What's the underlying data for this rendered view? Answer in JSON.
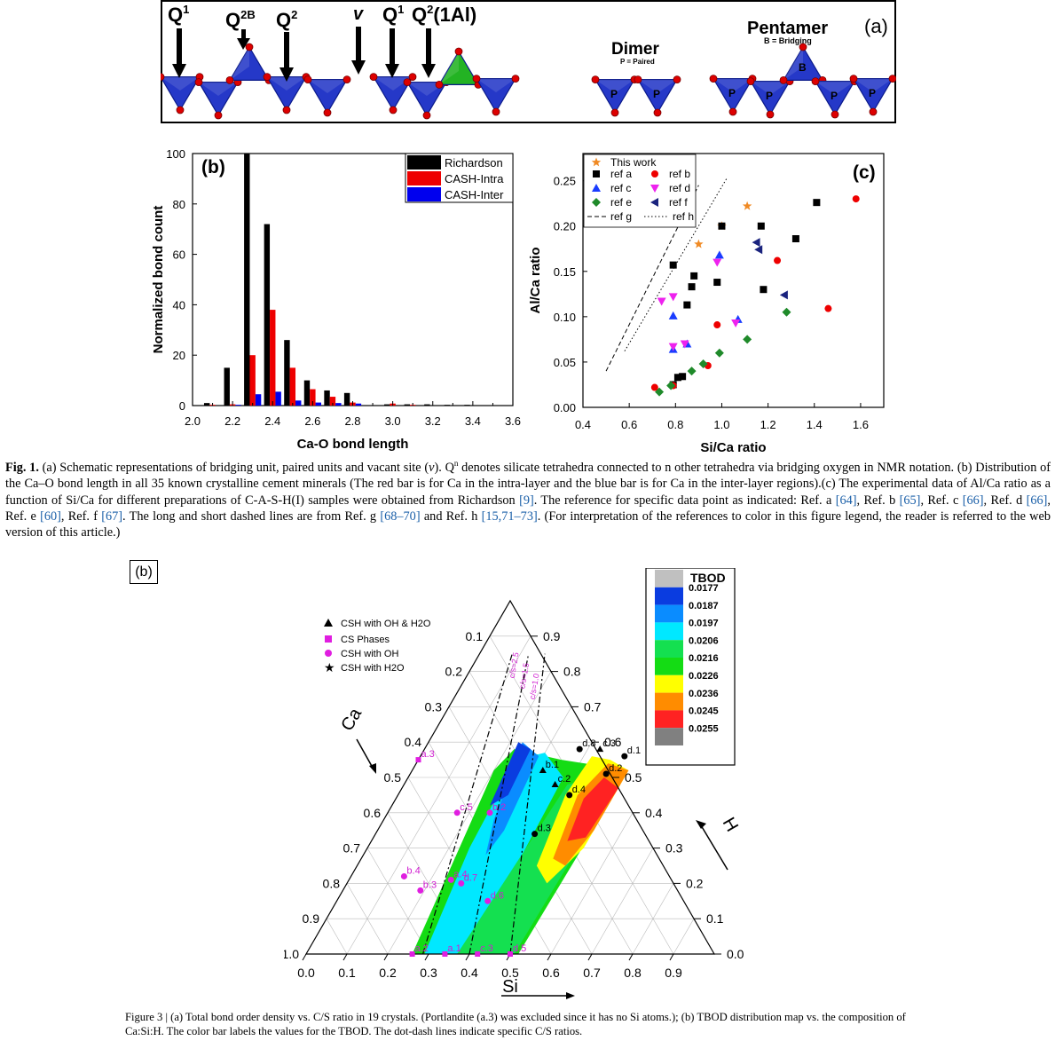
{
  "fig1a": {
    "labels": {
      "q1": "Q",
      "q1sup": "1",
      "q2b": "Q",
      "q2bsup": "2B",
      "q2": "Q",
      "q2sup": "2",
      "v": "v",
      "q1b": "Q",
      "q1bsup": "1",
      "q21al": "Q",
      "q21alsup": "2",
      "q21alsuffix": "(1Al)",
      "dimer": "Dimer",
      "dimer_sub": "P = Paired",
      "pentamer": "Pentamer",
      "pentamer_sub": "B = Bridging",
      "panel": "(a)",
      "p": "P",
      "b": "B"
    }
  },
  "chart_data": [
    {
      "type": "bar",
      "panel": "(b)",
      "xlabel": "Ca-O bond length",
      "ylabel": "Normalized bond count",
      "xlim": [
        2.0,
        3.6
      ],
      "ylim": [
        0,
        100
      ],
      "xticks": [
        "2.0",
        "2.2",
        "2.4",
        "2.6",
        "2.8",
        "3.0",
        "3.2",
        "3.4",
        "3.6"
      ],
      "yticks": [
        "0",
        "20",
        "40",
        "60",
        "80",
        "100"
      ],
      "legend_position": "top-right",
      "series": [
        {
          "name": "Richardson",
          "color": "#000000",
          "x": [
            2.1,
            2.2,
            2.3,
            2.4,
            2.5,
            2.6,
            2.7,
            2.8,
            3.0,
            3.1,
            3.2,
            3.3,
            3.4
          ],
          "values": [
            1,
            15,
            100,
            72,
            26,
            10,
            6,
            5,
            0.5,
            0.5,
            0.5,
            0.3,
            0.3
          ]
        },
        {
          "name": "CASH-Intra",
          "color": "#ee0000",
          "x": [
            2.1,
            2.2,
            2.3,
            2.4,
            2.5,
            2.6,
            2.7,
            2.8,
            3.0,
            3.1
          ],
          "values": [
            0.3,
            0.5,
            20,
            38,
            15,
            6.5,
            3.5,
            1.2,
            0.8,
            0.3
          ]
        },
        {
          "name": "CASH-Inter",
          "color": "#0000ee",
          "x": [
            2.2,
            2.3,
            2.4,
            2.5,
            2.6,
            2.7,
            2.8
          ],
          "values": [
            0.3,
            4.5,
            5.5,
            2,
            1.2,
            1,
            0.8
          ]
        }
      ]
    },
    {
      "type": "scatter",
      "panel": "(c)",
      "xlabel": "Si/Ca ratio",
      "ylabel": "Al/Ca ratio",
      "xlim": [
        0.4,
        1.7
      ],
      "ylim": [
        0,
        0.28
      ],
      "xticks": [
        "0.4",
        "0.6",
        "0.8",
        "1.0",
        "1.2",
        "1.4",
        "1.6"
      ],
      "yticks": [
        "0.00",
        "0.05",
        "0.10",
        "0.15",
        "0.20",
        "0.25"
      ],
      "legend_position": "top-left",
      "series": [
        {
          "name": "This work",
          "marker": "star",
          "color": "#f08a24",
          "points": [
            [
              0.9,
              0.18
            ],
            [
              1.0,
              0.2
            ],
            [
              1.11,
              0.222
            ]
          ]
        },
        {
          "name": "ref a",
          "marker": "square",
          "color": "#000000",
          "points": [
            [
              0.79,
              0.157
            ],
            [
              0.87,
              0.133
            ],
            [
              0.88,
              0.145
            ],
            [
              0.85,
              0.113
            ],
            [
              0.98,
              0.138
            ],
            [
              1.0,
              0.2
            ],
            [
              1.17,
              0.2
            ],
            [
              1.18,
              0.13
            ],
            [
              1.32,
              0.186
            ],
            [
              1.41,
              0.226
            ],
            [
              0.81,
              0.033
            ],
            [
              0.83,
              0.034
            ],
            [
              0.79,
              0.025
            ]
          ]
        },
        {
          "name": "ref b",
          "marker": "circle",
          "color": "#ee0000",
          "points": [
            [
              0.71,
              0.022
            ],
            [
              0.79,
              0.024
            ],
            [
              0.98,
              0.091
            ],
            [
              0.94,
              0.046
            ],
            [
              1.24,
              0.162
            ],
            [
              1.46,
              0.109
            ],
            [
              1.58,
              0.23
            ]
          ]
        },
        {
          "name": "ref c",
          "marker": "triangle-up",
          "color": "#1a3cff",
          "points": [
            [
              0.79,
              0.101
            ],
            [
              0.99,
              0.168
            ],
            [
              1.07,
              0.097
            ],
            [
              0.79,
              0.064
            ],
            [
              0.85,
              0.07
            ]
          ]
        },
        {
          "name": "ref d",
          "marker": "triangle-down",
          "color": "#ee22ee",
          "points": [
            [
              0.79,
              0.122
            ],
            [
              0.74,
              0.117
            ],
            [
              0.98,
              0.16
            ],
            [
              1.06,
              0.093
            ],
            [
              0.79,
              0.067
            ],
            [
              0.84,
              0.07
            ]
          ]
        },
        {
          "name": "ref e",
          "marker": "diamond",
          "color": "#1f8a2a",
          "points": [
            [
              0.73,
              0.017
            ],
            [
              0.78,
              0.024
            ],
            [
              0.87,
              0.04
            ],
            [
              0.92,
              0.048
            ],
            [
              0.99,
              0.06
            ],
            [
              1.11,
              0.075
            ],
            [
              1.28,
              0.105
            ]
          ]
        },
        {
          "name": "ref f",
          "marker": "triangle-left",
          "color": "#1a237e",
          "points": [
            [
              1.15,
              0.182
            ],
            [
              1.16,
              0.174
            ],
            [
              1.27,
              0.124
            ]
          ]
        },
        {
          "name": "ref g",
          "marker": "dash-line",
          "color": "#000000",
          "points": [
            [
              0.5,
              0.04
            ],
            [
              0.9,
              0.245
            ]
          ]
        },
        {
          "name": "ref h",
          "marker": "dot-line",
          "color": "#000000",
          "points": [
            [
              0.58,
              0.062
            ],
            [
              1.02,
              0.252
            ]
          ]
        }
      ]
    },
    {
      "type": "heatmap",
      "panel": "(b)",
      "title": "TBOD",
      "legend": [
        "0.0177",
        "0.0187",
        "0.0197",
        "0.0206",
        "0.0216",
        "0.0226",
        "0.0236",
        "0.0245",
        "0.0255"
      ],
      "legend_colors": [
        "#c0c0c0",
        "#0a3ce0",
        "#0a8cff",
        "#00e8ff",
        "#14e050",
        "#14dc14",
        "#ffff00",
        "#ff8c00",
        "#ff2222",
        "#808080"
      ],
      "axes": {
        "ca": "Ca",
        "si": "Si",
        "h": "H"
      },
      "bottom_ticks": [
        "0.0",
        "0.1",
        "0.2",
        "0.3",
        "0.4",
        "0.5",
        "0.6",
        "0.7",
        "0.8",
        "0.9"
      ],
      "left_ticks": [
        "1.0",
        "0.9",
        "0.8",
        "0.7",
        "0.6",
        "0.5",
        "0.4",
        "0.3",
        "0.2",
        "0.1"
      ],
      "right_ticks": [
        "0.9",
        "0.8",
        "0.7",
        "0.6",
        "0.5",
        "0.4",
        "0.3",
        "0.2",
        "0.1",
        "0.0"
      ],
      "legend_entries": [
        "CSH with OH & H2O",
        "CS Phases",
        "CSH with OH",
        "CSH with  H2O"
      ],
      "cs_lines": [
        "c/s=2.5",
        "c/s=1.5",
        "c/s=1.0"
      ],
      "point_labels": [
        "a.3",
        "d.8",
        "c.3",
        "d.1",
        "b.1",
        "d.2",
        "c.2",
        "d.4",
        "c.5",
        "b.2",
        "d.3",
        "b.4",
        "a.4",
        "d.7",
        "b.3",
        "d.6",
        "a.2",
        "a.1",
        "c.3",
        "d.5"
      ]
    }
  ],
  "captions": {
    "fig1_label": "Fig. 1.",
    "fig1_text_a": " (a) Schematic representations of bridging unit, paired units and vacant site (",
    "fig1_v": "v",
    "fig1_text_b": "). Q",
    "fig1_n": "n",
    "fig1_text_c": " denotes silicate tetrahedra connected to n other tetrahedra via bridging oxygen in NMR notation. (b) Distribution of the Ca–O bond length in all 35 known crystalline cement minerals (The red bar is for Ca in the intra-layer and the blue bar is for Ca in the inter-layer regions).(c) The experimental data of Al/Ca ratio as a function of Si/Ca for different preparations of C-A-S-H(I) samples were obtained from Richardson ",
    "fig1_r9": "[9]",
    "fig1_text_d": ". The reference for specific data point as indicated: Ref. a ",
    "fig1_r64": "[64]",
    "fig1_text_e": ", Ref. b ",
    "fig1_r65": "[65]",
    "fig1_text_f": ", Ref. c ",
    "fig1_r66": "[66]",
    "fig1_text_g": ", Ref. d ",
    "fig1_r66b": "[66]",
    "fig1_text_h": ", Ref. e ",
    "fig1_r60": "[60]",
    "fig1_text_i": ", Ref. f ",
    "fig1_r67": "[67]",
    "fig1_text_j": ". The long and short dashed lines are from Ref. g ",
    "fig1_r68": "[68–70]",
    "fig1_text_k": " and Ref. h ",
    "fig1_r15": "[15,71–73]",
    "fig1_text_l": ". (For interpretation of the references to color in this figure legend, the reader is referred to the web version of this article.)",
    "fig3_text": "Figure 3 | (a) Total bond order density vs. C/S ratio in 19 crystals. (Portlandite (a.3) was excluded since it has no Si atoms.); (b) TBOD distribution map vs. the composition of Ca:Si:H. The color bar labels the values for the TBOD. The dot-dash lines indicate specific C/S ratios.",
    "panel_b_box": "(b)"
  }
}
